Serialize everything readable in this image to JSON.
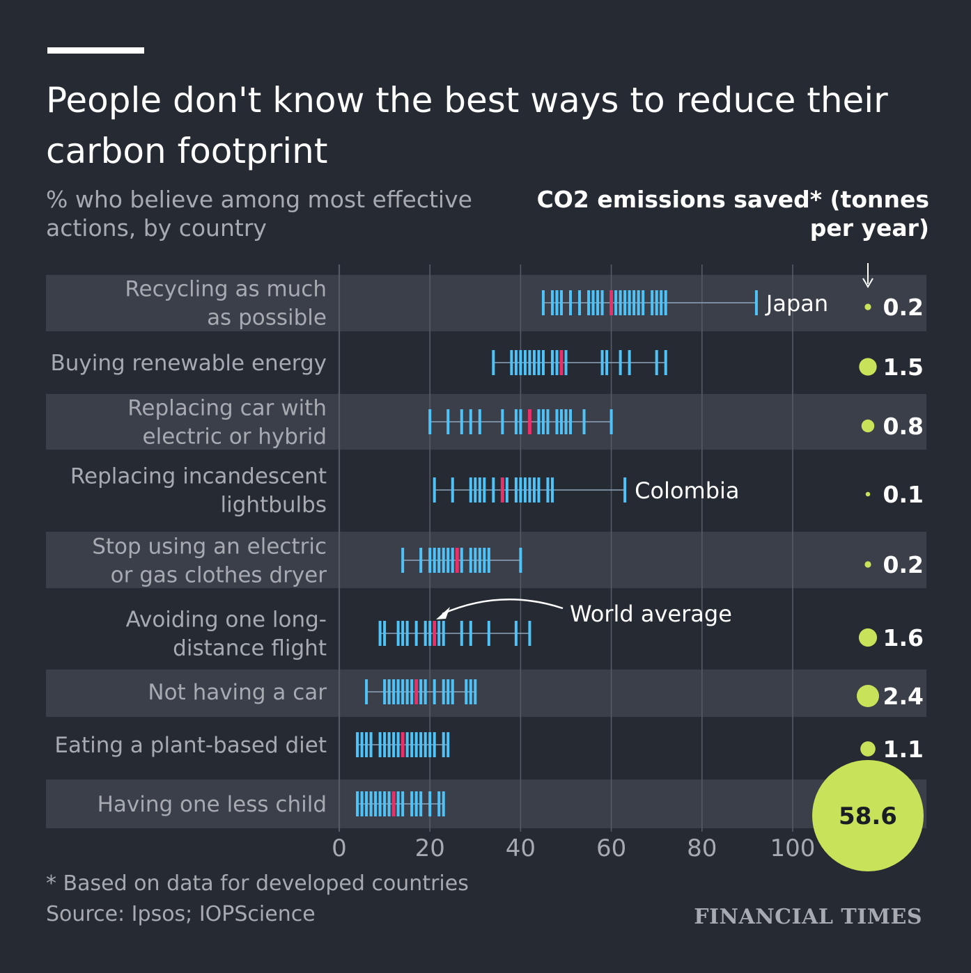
{
  "chart_data": {
    "type": "dot-strip",
    "title": "People don't know the best ways to reduce their carbon footprint",
    "subtitle": "% who believe among most effective actions, by country",
    "emissions_header": "CO2 emissions saved* (tonnes per year)",
    "x_ticks": [
      "0",
      "20",
      "40",
      "60",
      "80",
      "100"
    ],
    "xlim": [
      0,
      100
    ],
    "grid": true,
    "colors": {
      "country": "#4fc3f7",
      "world_average": "#e8306a",
      "emissions_bubble": "#c8e25a",
      "row_band": "#3a3f49"
    },
    "categories": [
      {
        "label_lines": [
          "Recycling as much",
          "as possible"
        ],
        "countries": [
          45,
          47,
          48,
          49,
          51,
          53,
          55,
          56,
          57,
          58,
          60,
          61,
          62,
          63,
          64,
          65,
          66,
          67,
          69,
          70,
          71,
          72,
          92
        ],
        "world_average": 60,
        "annotation": "Japan",
        "emissions": "0.2",
        "emissions_value": 0.2
      },
      {
        "label_lines": [
          "Buying renewable energy"
        ],
        "countries": [
          34,
          38,
          39,
          40,
          41,
          42,
          43,
          44,
          45,
          47,
          48,
          50,
          58,
          59,
          62,
          64,
          70,
          72
        ],
        "world_average": 49,
        "emissions": "1.5",
        "emissions_value": 1.5
      },
      {
        "label_lines": [
          "Replacing car with",
          "electric or hybrid"
        ],
        "countries": [
          20,
          24,
          27,
          29,
          31,
          36,
          39,
          40,
          42,
          44,
          45,
          46,
          48,
          49,
          50,
          51,
          54,
          60
        ],
        "world_average": 42,
        "emissions": "0.8",
        "emissions_value": 0.8
      },
      {
        "label_lines": [
          "Replacing incandescent",
          "lightbulbs"
        ],
        "countries": [
          21,
          25,
          29,
          30,
          31,
          32,
          34,
          37,
          39,
          40,
          41,
          42,
          43,
          44,
          46,
          47,
          63
        ],
        "world_average": 36,
        "annotation": "Colombia",
        "emissions": "0.1",
        "emissions_value": 0.1
      },
      {
        "label_lines": [
          "Stop using an electric",
          "or gas clothes dryer"
        ],
        "countries": [
          14,
          18,
          20,
          21,
          22,
          23,
          24,
          25,
          27,
          29,
          30,
          31,
          32,
          33,
          40
        ],
        "world_average": 26,
        "emissions": "0.2",
        "emissions_value": 0.2
      },
      {
        "label_lines": [
          "Avoiding one long-",
          "distance flight"
        ],
        "countries": [
          9,
          10,
          13,
          14,
          15,
          17,
          19,
          20,
          22,
          23,
          27,
          29,
          33,
          39,
          42
        ],
        "world_average": 21,
        "annotation": "World average",
        "emissions": "1.6",
        "emissions_value": 1.6
      },
      {
        "label_lines": [
          "Not having a car"
        ],
        "countries": [
          6,
          10,
          11,
          12,
          13,
          14,
          15,
          16,
          18,
          19,
          21,
          23,
          24,
          25,
          28,
          29,
          30
        ],
        "world_average": 17,
        "emissions": "2.4",
        "emissions_value": 2.4
      },
      {
        "label_lines": [
          "Eating a plant-based diet"
        ],
        "countries": [
          4,
          5,
          6,
          7,
          9,
          10,
          11,
          12,
          13,
          15,
          16,
          17,
          18,
          19,
          20,
          21,
          23,
          24
        ],
        "world_average": 14,
        "emissions": "1.1",
        "emissions_value": 1.1
      },
      {
        "label_lines": [
          "Having one less child"
        ],
        "countries": [
          4,
          5,
          6,
          7,
          8,
          9,
          10,
          11,
          13,
          14,
          16,
          17,
          18,
          20,
          22,
          23
        ],
        "world_average": 12,
        "emissions": "58.6",
        "emissions_value": 58.6
      }
    ]
  },
  "footnote": "* Based on data for developed countries",
  "source": "Source: Ipsos; IOPScience",
  "brand": "FINANCIAL TIMES"
}
